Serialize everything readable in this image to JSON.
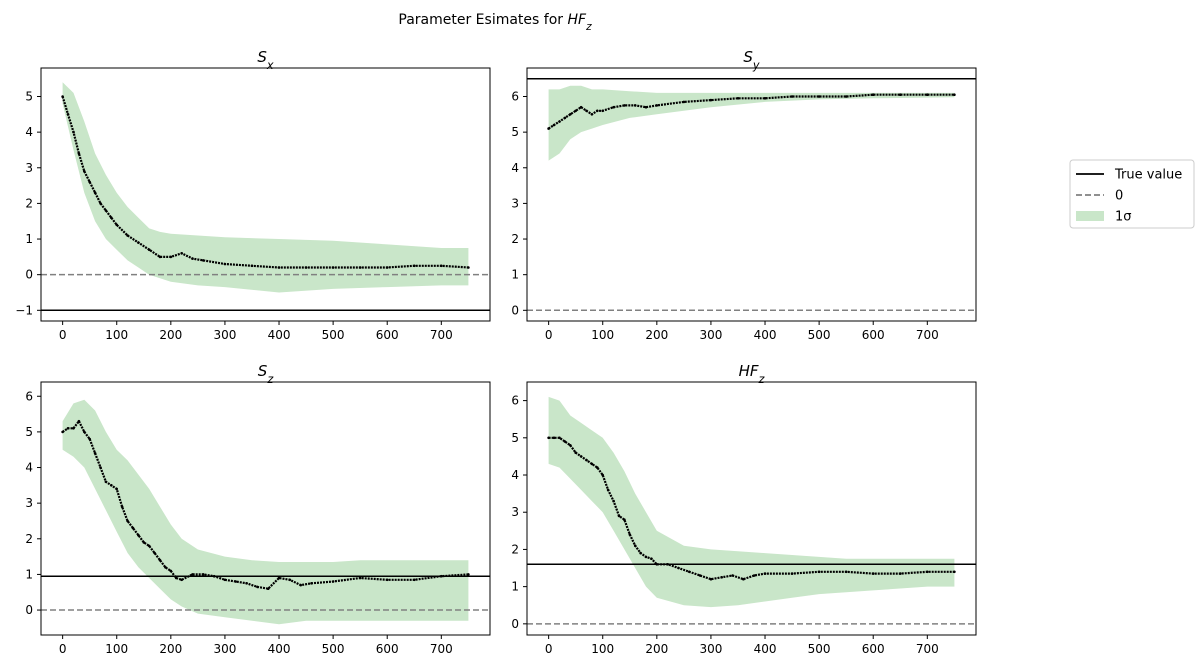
{
  "figure": {
    "suptitle": "Parameter Esimates for HF_z"
  },
  "legend": {
    "placement": "right",
    "entries": [
      {
        "label": "True value",
        "style": "solid",
        "color": "#000000"
      },
      {
        "label": "0",
        "style": "dashed",
        "color": "#808080"
      },
      {
        "label": "1σ",
        "style": "patch",
        "color": "#c9e6c9"
      }
    ]
  },
  "colors": {
    "estimate": "#000000",
    "true_value": "#000000",
    "zero_line": "#808080",
    "band": "#c9e6c9"
  },
  "chart_data": [
    {
      "type": "line",
      "title": "S_x",
      "xlim": [
        -40,
        790
      ],
      "ylim": [
        -1.3,
        5.8
      ],
      "xticks": [
        0,
        100,
        200,
        300,
        400,
        500,
        600,
        700
      ],
      "yticks": [
        -1,
        0,
        1,
        2,
        3,
        4,
        5
      ],
      "true_value": -1.0,
      "zero_line": 0,
      "estimate": {
        "x": [
          0,
          10,
          20,
          30,
          40,
          50,
          60,
          70,
          80,
          90,
          100,
          120,
          140,
          160,
          180,
          200,
          220,
          240,
          260,
          300,
          350,
          400,
          450,
          500,
          550,
          600,
          650,
          700,
          750
        ],
        "y": [
          5.0,
          4.5,
          4.0,
          3.4,
          2.9,
          2.6,
          2.3,
          2.0,
          1.8,
          1.6,
          1.4,
          1.1,
          0.9,
          0.7,
          0.5,
          0.5,
          0.6,
          0.45,
          0.4,
          0.3,
          0.25,
          0.2,
          0.2,
          0.2,
          0.2,
          0.2,
          0.25,
          0.25,
          0.2
        ]
      },
      "sigma_band": {
        "x": [
          0,
          20,
          40,
          60,
          80,
          100,
          120,
          140,
          160,
          180,
          200,
          250,
          300,
          400,
          500,
          600,
          700,
          750
        ],
        "lower": [
          4.8,
          3.5,
          2.3,
          1.5,
          1.0,
          0.7,
          0.4,
          0.2,
          0.0,
          -0.1,
          -0.2,
          -0.3,
          -0.35,
          -0.5,
          -0.4,
          -0.35,
          -0.3,
          -0.3
        ],
        "upper": [
          5.4,
          5.1,
          4.3,
          3.4,
          2.8,
          2.3,
          1.9,
          1.6,
          1.3,
          1.2,
          1.15,
          1.1,
          1.05,
          1.0,
          0.95,
          0.85,
          0.75,
          0.75
        ]
      }
    },
    {
      "type": "line",
      "title": "S_y",
      "xlim": [
        -40,
        790
      ],
      "ylim": [
        -0.3,
        6.8
      ],
      "xticks": [
        0,
        100,
        200,
        300,
        400,
        500,
        600,
        700
      ],
      "yticks": [
        0,
        1,
        2,
        3,
        4,
        5,
        6
      ],
      "true_value": 6.5,
      "zero_line": 0,
      "estimate": {
        "x": [
          0,
          10,
          20,
          30,
          40,
          50,
          60,
          70,
          80,
          90,
          100,
          120,
          140,
          160,
          180,
          200,
          250,
          300,
          350,
          400,
          450,
          500,
          550,
          600,
          650,
          700,
          750
        ],
        "y": [
          5.1,
          5.2,
          5.3,
          5.4,
          5.5,
          5.6,
          5.7,
          5.6,
          5.5,
          5.6,
          5.6,
          5.7,
          5.75,
          5.75,
          5.7,
          5.75,
          5.85,
          5.9,
          5.95,
          5.95,
          6.0,
          6.0,
          6.0,
          6.05,
          6.05,
          6.05,
          6.05
        ]
      },
      "sigma_band": {
        "x": [
          0,
          20,
          40,
          60,
          80,
          100,
          150,
          200,
          300,
          400,
          500,
          600,
          700,
          750
        ],
        "lower": [
          4.2,
          4.4,
          4.8,
          5.0,
          5.1,
          5.2,
          5.4,
          5.5,
          5.7,
          5.85,
          5.92,
          5.95,
          5.97,
          5.98
        ],
        "upper": [
          6.2,
          6.2,
          6.3,
          6.3,
          6.2,
          6.2,
          6.15,
          6.1,
          6.1,
          6.1,
          6.1,
          6.1,
          6.1,
          6.1
        ]
      }
    },
    {
      "type": "line",
      "title": "S_z",
      "xlim": [
        -40,
        790
      ],
      "ylim": [
        -0.7,
        6.4
      ],
      "xticks": [
        0,
        100,
        200,
        300,
        400,
        500,
        600,
        700
      ],
      "yticks": [
        0,
        1,
        2,
        3,
        4,
        5,
        6
      ],
      "true_value": 0.95,
      "zero_line": 0,
      "estimate": {
        "x": [
          0,
          10,
          20,
          30,
          40,
          50,
          60,
          70,
          80,
          90,
          100,
          110,
          120,
          130,
          140,
          150,
          160,
          170,
          180,
          190,
          200,
          210,
          220,
          240,
          260,
          280,
          300,
          320,
          340,
          360,
          380,
          400,
          420,
          440,
          460,
          500,
          550,
          600,
          650,
          700,
          750
        ],
        "y": [
          5.0,
          5.1,
          5.1,
          5.3,
          5.0,
          4.8,
          4.4,
          4.0,
          3.6,
          3.5,
          3.4,
          2.9,
          2.5,
          2.3,
          2.1,
          1.9,
          1.8,
          1.6,
          1.4,
          1.2,
          1.1,
          0.9,
          0.85,
          1.0,
          1.0,
          0.95,
          0.85,
          0.8,
          0.75,
          0.65,
          0.6,
          0.9,
          0.85,
          0.7,
          0.75,
          0.8,
          0.9,
          0.85,
          0.85,
          0.95,
          1.0
        ]
      },
      "sigma_band": {
        "x": [
          0,
          20,
          40,
          60,
          80,
          100,
          120,
          140,
          160,
          180,
          200,
          220,
          250,
          300,
          350,
          400,
          450,
          500,
          550,
          600,
          650,
          700,
          750
        ],
        "lower": [
          4.5,
          4.3,
          4.0,
          3.4,
          2.8,
          2.2,
          1.6,
          1.2,
          0.9,
          0.6,
          0.3,
          0.1,
          -0.1,
          -0.2,
          -0.3,
          -0.4,
          -0.3,
          -0.3,
          -0.3,
          -0.3,
          -0.3,
          -0.3,
          -0.3
        ],
        "upper": [
          5.3,
          5.8,
          5.9,
          5.6,
          5.0,
          4.5,
          4.2,
          3.8,
          3.4,
          2.9,
          2.4,
          2.0,
          1.7,
          1.5,
          1.4,
          1.35,
          1.35,
          1.35,
          1.4,
          1.4,
          1.4,
          1.4,
          1.4
        ]
      }
    },
    {
      "type": "line",
      "title": "HF_z",
      "xlim": [
        -40,
        790
      ],
      "ylim": [
        -0.3,
        6.5
      ],
      "xticks": [
        0,
        100,
        200,
        300,
        400,
        500,
        600,
        700
      ],
      "yticks": [
        0,
        1,
        2,
        3,
        4,
        5,
        6
      ],
      "true_value": 1.6,
      "zero_line": 0,
      "estimate": {
        "x": [
          0,
          10,
          20,
          30,
          40,
          50,
          60,
          70,
          80,
          90,
          100,
          110,
          120,
          130,
          140,
          150,
          160,
          170,
          180,
          190,
          200,
          220,
          240,
          260,
          280,
          300,
          320,
          340,
          360,
          380,
          400,
          450,
          500,
          550,
          600,
          650,
          700,
          750
        ],
        "y": [
          5.0,
          5.0,
          5.0,
          4.9,
          4.8,
          4.6,
          4.5,
          4.4,
          4.3,
          4.2,
          4.0,
          3.6,
          3.3,
          2.9,
          2.8,
          2.4,
          2.1,
          1.9,
          1.8,
          1.75,
          1.6,
          1.6,
          1.5,
          1.4,
          1.3,
          1.2,
          1.25,
          1.3,
          1.2,
          1.3,
          1.35,
          1.35,
          1.4,
          1.4,
          1.35,
          1.35,
          1.4,
          1.4
        ]
      },
      "sigma_band": {
        "x": [
          0,
          20,
          40,
          60,
          80,
          100,
          120,
          140,
          160,
          180,
          200,
          250,
          300,
          350,
          400,
          450,
          500,
          550,
          600,
          650,
          700,
          750
        ],
        "lower": [
          4.3,
          4.2,
          3.9,
          3.6,
          3.3,
          3.0,
          2.5,
          2.0,
          1.5,
          1.0,
          0.7,
          0.5,
          0.45,
          0.5,
          0.6,
          0.7,
          0.8,
          0.85,
          0.9,
          0.95,
          1.0,
          1.0
        ],
        "upper": [
          6.1,
          6.0,
          5.6,
          5.4,
          5.2,
          5.0,
          4.6,
          4.1,
          3.5,
          3.0,
          2.5,
          2.1,
          2.0,
          1.95,
          1.9,
          1.85,
          1.8,
          1.75,
          1.75,
          1.75,
          1.75,
          1.75
        ]
      }
    }
  ]
}
